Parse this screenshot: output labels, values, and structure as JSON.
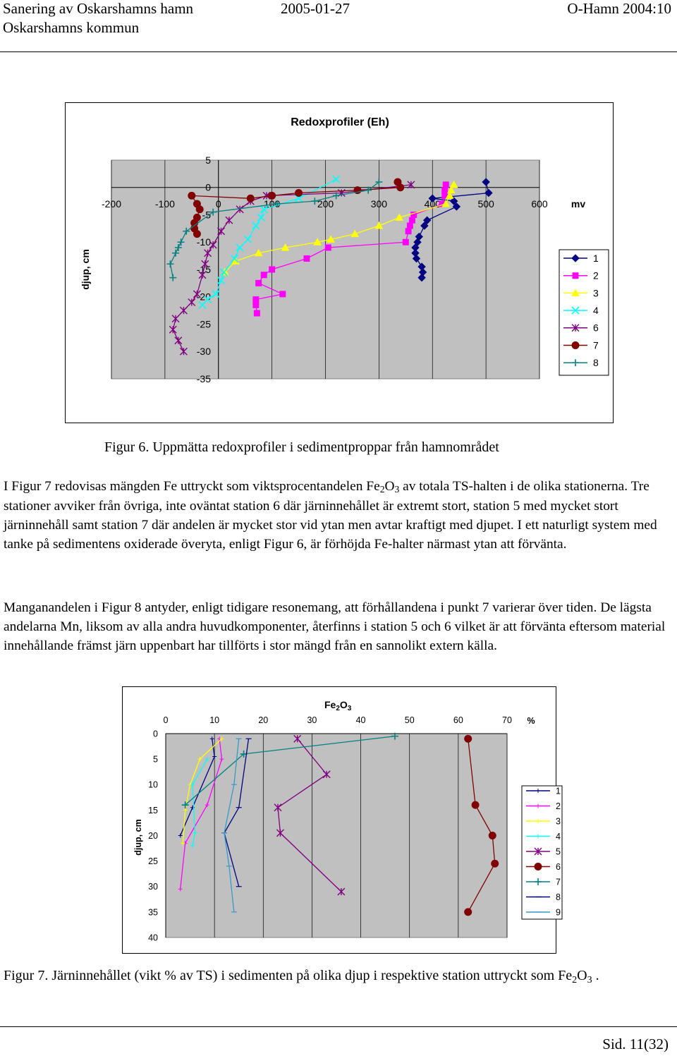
{
  "header": {
    "left_line1": "Sanering av Oskarshamns hamn",
    "left_line2": "Oskarshamns kommun",
    "date": "2005-01-27",
    "doc_id": "O-Hamn 2004:10"
  },
  "figure6": {
    "caption": "Figur 6. Uppmätta redoxprofiler i sedimentproppar från hamnområdet"
  },
  "paragraph1": {
    "p1": "I Figur 7 redovisas mängden Fe uttryckt som viktsprocentandelen Fe",
    "sub1": "2",
    "p2": "O",
    "sub2": "3",
    "p3": " av totala TS-halten i de olika stationerna. Tre stationer avviker från övriga, inte oväntat station 6 där järninnehållet är extremt stort, station 5 med mycket stort järninnehåll samt station 7 där andelen är mycket stor vid ytan men avtar kraftigt med djupet. I ett naturligt system med tanke på sedimentens oxiderade överyta, enligt Figur 6, är förhöjda Fe-halter närmast ytan att förvänta."
  },
  "paragraph2": "Manganandelen i Figur 8 antyder, enligt tidigare resonemang, att förhållandena i punkt 7 varierar över tiden. De lägsta andelarna Mn, liksom av alla andra huvudkomponenter, återfinns i station 5 och 6 vilket är att förvänta eftersom material innehållande främst järn uppenbart har tillförts i stor mängd från en sannolikt extern källa.",
  "figure7": {
    "caption_a": "Figur 7. Järninnehållet (vikt % av TS) i sedimenten på olika djup i respektive station uttryckt som Fe",
    "caption_sub1": "2",
    "caption_b": "O",
    "caption_sub2": "3",
    "caption_c": " ."
  },
  "footer": {
    "page": "Sid. 11(32)"
  },
  "chart_data": [
    {
      "type": "line",
      "title": "Redoxprofiler (Eh)",
      "xlabel": "mv",
      "ylabel": "djup, cm",
      "xlim": [
        -200,
        600
      ],
      "ylim": [
        -35,
        5
      ],
      "x_ticks": [
        "-200",
        "-100",
        "0",
        "100",
        "200",
        "300",
        "400",
        "500",
        "600"
      ],
      "y_ticks": [
        "5",
        "0",
        "-5",
        "-10",
        "-15",
        "-20",
        "-25",
        "-30",
        "-35"
      ],
      "grid": true,
      "legend": "right",
      "series": [
        {
          "name": "1",
          "color": "#000080",
          "marker": "diamond",
          "points": [
            [
              500,
              1
            ],
            [
              505,
              -1
            ],
            [
              400,
              -2
            ],
            [
              440,
              -2.5
            ],
            [
              445,
              -3.5
            ],
            [
              390,
              -6
            ],
            [
              385,
              -7
            ],
            [
              375,
              -9
            ],
            [
              372,
              -10
            ],
            [
              368,
              -11
            ],
            [
              368,
              -12
            ],
            [
              370,
              -13
            ],
            [
              380,
              -14.5
            ],
            [
              382,
              -15.5
            ],
            [
              380,
              -16.5
            ]
          ]
        },
        {
          "name": "2",
          "color": "#ff00ff",
          "marker": "square",
          "points": [
            [
              425,
              0.5
            ],
            [
              423,
              -0.5
            ],
            [
              423,
              -1.5
            ],
            [
              418,
              -3
            ],
            [
              365,
              -5
            ],
            [
              362,
              -6
            ],
            [
              358,
              -7
            ],
            [
              355,
              -8
            ],
            [
              350,
              -10
            ],
            [
              205,
              -11
            ],
            [
              165,
              -13
            ],
            [
              100,
              -15
            ],
            [
              85,
              -16
            ],
            [
              75,
              -17.5
            ],
            [
              120,
              -19.5
            ],
            [
              70,
              -20.5
            ],
            [
              70,
              -21.5
            ],
            [
              72,
              -23
            ]
          ]
        },
        {
          "name": "3",
          "color": "#ffff00",
          "marker": "triangle",
          "points": [
            [
              440,
              0.5
            ],
            [
              435,
              -0.5
            ],
            [
              432,
              -1.5
            ],
            [
              425,
              -3
            ],
            [
              338,
              -5.5
            ],
            [
              300,
              -7
            ],
            [
              255,
              -8.5
            ],
            [
              210,
              -9.5
            ],
            [
              185,
              -10
            ],
            [
              125,
              -11
            ],
            [
              75,
              -12
            ],
            [
              32,
              -13.5
            ],
            [
              12,
              -15.5
            ]
          ]
        },
        {
          "name": "4",
          "color": "#00ffff",
          "marker": "x",
          "points": [
            [
              220,
              1.5
            ],
            [
              150,
              -2
            ],
            [
              85,
              -4
            ],
            [
              80,
              -5.5
            ],
            [
              70,
              -7
            ],
            [
              55,
              -9.5
            ],
            [
              40,
              -11
            ],
            [
              30,
              -13
            ],
            [
              10,
              -15.5
            ],
            [
              5,
              -17
            ],
            [
              -5,
              -19.5
            ],
            [
              -20,
              -20.5
            ],
            [
              -30,
              -21.5
            ]
          ]
        },
        {
          "name": "6",
          "color": "#800080",
          "marker": "asterisk",
          "points": [
            [
              360,
              0.5
            ],
            [
              230,
              -1
            ],
            [
              90,
              -1.5
            ],
            [
              60,
              -2.5
            ],
            [
              40,
              -4
            ],
            [
              20,
              -6
            ],
            [
              5,
              -8
            ],
            [
              -10,
              -10.5
            ],
            [
              -20,
              -12
            ],
            [
              -25,
              -14
            ],
            [
              -30,
              -16
            ],
            [
              -40,
              -19.5
            ],
            [
              -50,
              -21
            ],
            [
              -65,
              -22.5
            ],
            [
              -80,
              -24
            ],
            [
              -85,
              -26
            ],
            [
              -75,
              -28
            ],
            [
              -65,
              -30
            ]
          ]
        },
        {
          "name": "7",
          "color": "#800000",
          "marker": "circle",
          "points": [
            [
              335,
              1
            ],
            [
              340,
              0
            ],
            [
              260,
              -0.5
            ],
            [
              150,
              -1
            ],
            [
              100,
              -1.5
            ],
            [
              60,
              -2
            ],
            [
              -50,
              -1.5
            ],
            [
              -40,
              -3
            ],
            [
              -35,
              -4
            ],
            [
              -40,
              -5.5
            ],
            [
              -45,
              -6.5
            ],
            [
              -45,
              -7.5
            ],
            [
              -40,
              -8.5
            ]
          ]
        },
        {
          "name": "8",
          "color": "#008080",
          "marker": "plus",
          "points": [
            [
              300,
              1
            ],
            [
              280,
              -0.5
            ],
            [
              220,
              -1.5
            ],
            [
              180,
              -2.5
            ],
            [
              110,
              -3
            ],
            [
              -10,
              -4.5
            ],
            [
              -60,
              -8
            ],
            [
              -70,
              -10
            ],
            [
              -75,
              -11
            ],
            [
              -80,
              -12
            ],
            [
              -90,
              -14
            ],
            [
              -85,
              -16.5
            ]
          ]
        }
      ]
    },
    {
      "type": "line",
      "title": "Fe2O3",
      "xlabel": "%",
      "ylabel": "djup, cm",
      "xlim": [
        0,
        70
      ],
      "ylim": [
        0,
        40
      ],
      "x_ticks": [
        "0",
        "10",
        "20",
        "30",
        "40",
        "50",
        "60",
        "70"
      ],
      "y_ticks": [
        "0",
        "5",
        "10",
        "15",
        "20",
        "25",
        "30",
        "35",
        "40"
      ],
      "grid": true,
      "legend": "right",
      "series": [
        {
          "name": "1",
          "color": "#000080",
          "marker": "tick",
          "points": [
            [
              9.5,
              1
            ],
            [
              10,
              4.5
            ],
            [
              5.5,
              14.5
            ],
            [
              3,
              20
            ]
          ]
        },
        {
          "name": "2",
          "color": "#ff00ff",
          "marker": "tick",
          "points": [
            [
              11,
              1
            ],
            [
              11.5,
              5
            ],
            [
              8.5,
              14
            ],
            [
              4,
              21.5
            ],
            [
              3,
              30.5
            ]
          ]
        },
        {
          "name": "3",
          "color": "#ffff00",
          "marker": "tick",
          "points": [
            [
              11.5,
              1
            ],
            [
              7,
              5
            ],
            [
              5,
              10
            ],
            [
              4,
              15
            ],
            [
              3.5,
              21.5
            ]
          ]
        },
        {
          "name": "4",
          "color": "#00ffff",
          "marker": "tick",
          "points": [
            [
              8.5,
              5
            ],
            [
              5.5,
              10
            ],
            [
              6,
              19.5
            ],
            [
              5.5,
              22
            ]
          ]
        },
        {
          "name": "5",
          "color": "#800080",
          "marker": "asterisk",
          "points": [
            [
              27,
              1
            ],
            [
              33,
              8
            ],
            [
              23,
              14.5
            ],
            [
              23.5,
              19.5
            ],
            [
              36,
              31
            ]
          ]
        },
        {
          "name": "6",
          "color": "#800000",
          "marker": "circle",
          "points": [
            [
              62,
              1
            ],
            [
              63.5,
              14
            ],
            [
              67,
              20
            ],
            [
              67.5,
              25.5
            ],
            [
              62,
              35
            ]
          ]
        },
        {
          "name": "7",
          "color": "#008080",
          "marker": "plus",
          "points": [
            [
              47,
              0.5
            ],
            [
              16,
              4
            ],
            [
              4,
              14
            ]
          ]
        },
        {
          "name": "8",
          "color": "#000080",
          "marker": "dash",
          "points": [
            [
              17,
              1
            ],
            [
              15,
              14.5
            ],
            [
              12,
              19.5
            ],
            [
              15,
              30
            ]
          ]
        },
        {
          "name": "9",
          "color": "#3399cc",
          "marker": "dash",
          "points": [
            [
              15,
              1
            ],
            [
              14,
              10
            ],
            [
              12,
              19.5
            ],
            [
              13,
              26
            ],
            [
              14,
              35
            ]
          ]
        }
      ]
    }
  ]
}
